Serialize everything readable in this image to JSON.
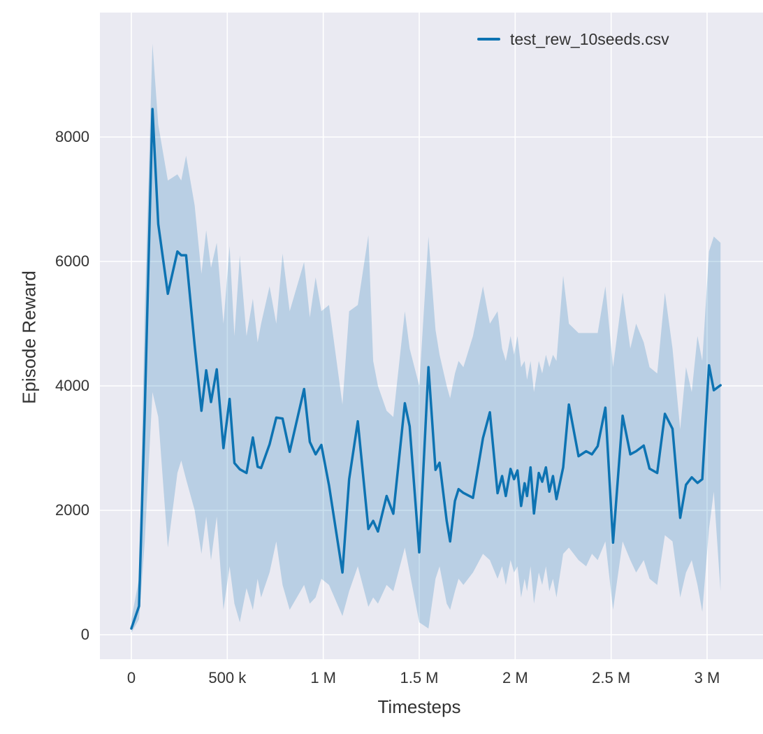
{
  "colors": {
    "line": "#0d73b2",
    "band_fill": "rgba(13,115,178,0.22)",
    "plot_background": "#eaeaf2",
    "grid": "#ffffff",
    "text": "#333333",
    "figure_background": "#ffffff"
  },
  "legend": {
    "entry": "test_rew_10seeds.csv"
  },
  "chart_data": {
    "type": "line",
    "title": "",
    "xlabel": "Timesteps",
    "ylabel": "Episode Reward",
    "grid": true,
    "legend_position": "upper right",
    "series": [
      {
        "name": "test_rew_10seeds.csv",
        "color": "#0d73b2",
        "band": "mean ± spread over 10 seeds"
      }
    ],
    "x_ticks": [
      {
        "value_millions": 0.0,
        "label": "0"
      },
      {
        "value_millions": 0.5,
        "label": "500 k"
      },
      {
        "value_millions": 1.0,
        "label": "1 M"
      },
      {
        "value_millions": 1.5,
        "label": "1.5 M"
      },
      {
        "value_millions": 2.0,
        "label": "2 M"
      },
      {
        "value_millions": 2.5,
        "label": "2.5 M"
      },
      {
        "value_millions": 3.0,
        "label": "3 M"
      }
    ],
    "y_ticks": [
      {
        "value": 0,
        "label": "0"
      },
      {
        "value": 2000,
        "label": "2000"
      },
      {
        "value": 4000,
        "label": "4000"
      },
      {
        "value": 6000,
        "label": "6000"
      },
      {
        "value": 8000,
        "label": "8000"
      }
    ],
    "xlim_millions": [
      -0.164,
      3.299
    ],
    "ylim": [
      -390,
      10000
    ],
    "points_format": [
      "timesteps_millions",
      "mean_reward",
      "band_low",
      "band_high"
    ],
    "points": [
      [
        0.0,
        100,
        30,
        250
      ],
      [
        0.04,
        460,
        250,
        900
      ],
      [
        0.07,
        3600,
        1500,
        5200
      ],
      [
        0.11,
        8450,
        3900,
        9500
      ],
      [
        0.14,
        6600,
        3500,
        8200
      ],
      [
        0.19,
        5480,
        1400,
        7300
      ],
      [
        0.24,
        6160,
        2600,
        7400
      ],
      [
        0.26,
        6100,
        2800,
        7300
      ],
      [
        0.285,
        6100,
        2500,
        7700
      ],
      [
        0.33,
        4650,
        2000,
        6900
      ],
      [
        0.365,
        3600,
        1300,
        5800
      ],
      [
        0.39,
        4250,
        1900,
        6500
      ],
      [
        0.415,
        3740,
        1200,
        5900
      ],
      [
        0.445,
        4265,
        1900,
        6300
      ],
      [
        0.48,
        3000,
        400,
        5000
      ],
      [
        0.512,
        3790,
        1100,
        6250
      ],
      [
        0.537,
        2760,
        500,
        4800
      ],
      [
        0.565,
        2660,
        200,
        6100
      ],
      [
        0.6,
        2600,
        750,
        4800
      ],
      [
        0.633,
        3170,
        400,
        5400
      ],
      [
        0.658,
        2700,
        900,
        4700
      ],
      [
        0.676,
        2680,
        600,
        5000
      ],
      [
        0.72,
        3060,
        1000,
        5600
      ],
      [
        0.755,
        3490,
        1500,
        5000
      ],
      [
        0.788,
        3475,
        800,
        6125
      ],
      [
        0.825,
        2940,
        400,
        5200
      ],
      [
        0.9,
        3950,
        800,
        5990
      ],
      [
        0.93,
        3100,
        500,
        5100
      ],
      [
        0.96,
        2900,
        600,
        5745
      ],
      [
        0.99,
        3050,
        900,
        5200
      ],
      [
        1.03,
        2400,
        800,
        5300
      ],
      [
        1.1,
        1000,
        300,
        3700
      ],
      [
        1.135,
        2500,
        700,
        5200
      ],
      [
        1.18,
        3430,
        1100,
        5300
      ],
      [
        1.235,
        1700,
        450,
        6420
      ],
      [
        1.26,
        1830,
        600,
        4400
      ],
      [
        1.285,
        1660,
        500,
        4000
      ],
      [
        1.33,
        2230,
        800,
        3600
      ],
      [
        1.365,
        1945,
        700,
        3500
      ],
      [
        1.425,
        3720,
        1400,
        5200
      ],
      [
        1.45,
        3350,
        1000,
        4600
      ],
      [
        1.5,
        1325,
        200,
        4000
      ],
      [
        1.548,
        4300,
        100,
        6400
      ],
      [
        1.585,
        2650,
        900,
        4900
      ],
      [
        1.606,
        2765,
        1100,
        4500
      ],
      [
        1.643,
        1830,
        500,
        4000
      ],
      [
        1.661,
        1500,
        400,
        3800
      ],
      [
        1.686,
        2150,
        700,
        4200
      ],
      [
        1.705,
        2340,
        900,
        4400
      ],
      [
        1.73,
        2280,
        800,
        4300
      ],
      [
        1.78,
        2200,
        1000,
        4800
      ],
      [
        1.832,
        3160,
        1300,
        5600
      ],
      [
        1.868,
        3575,
        1200,
        5000
      ],
      [
        1.908,
        2275,
        900,
        5200
      ],
      [
        1.932,
        2550,
        1100,
        4600
      ],
      [
        1.951,
        2230,
        800,
        4400
      ],
      [
        1.976,
        2665,
        1200,
        4800
      ],
      [
        1.994,
        2500,
        1000,
        4500
      ],
      [
        2.012,
        2640,
        1100,
        4800
      ],
      [
        2.031,
        2070,
        600,
        4300
      ],
      [
        2.049,
        2435,
        900,
        4400
      ],
      [
        2.062,
        2230,
        700,
        4100
      ],
      [
        2.08,
        2690,
        1100,
        4400
      ],
      [
        2.098,
        1950,
        500,
        3900
      ],
      [
        2.123,
        2600,
        1000,
        4400
      ],
      [
        2.141,
        2460,
        800,
        4200
      ],
      [
        2.16,
        2690,
        1100,
        4500
      ],
      [
        2.178,
        2300,
        700,
        4300
      ],
      [
        2.197,
        2550,
        900,
        4500
      ],
      [
        2.215,
        2180,
        600,
        4400
      ],
      [
        2.25,
        2690,
        1300,
        5770
      ],
      [
        2.28,
        3700,
        1400,
        5000
      ],
      [
        2.33,
        2870,
        1200,
        4850
      ],
      [
        2.37,
        2950,
        1100,
        4850
      ],
      [
        2.4,
        2900,
        1300,
        4850
      ],
      [
        2.43,
        3030,
        1200,
        4850
      ],
      [
        2.47,
        3650,
        1500,
        5600
      ],
      [
        2.51,
        1480,
        400,
        4300
      ],
      [
        2.56,
        3520,
        1500,
        5500
      ],
      [
        2.6,
        2900,
        1200,
        4600
      ],
      [
        2.63,
        2950,
        1000,
        5000
      ],
      [
        2.67,
        3040,
        1200,
        4700
      ],
      [
        2.7,
        2670,
        900,
        4300
      ],
      [
        2.74,
        2600,
        800,
        4200
      ],
      [
        2.78,
        3550,
        1600,
        5500
      ],
      [
        2.82,
        3310,
        1500,
        4600
      ],
      [
        2.86,
        1880,
        600,
        3300
      ],
      [
        2.89,
        2410,
        1000,
        4300
      ],
      [
        2.92,
        2530,
        1200,
        3900
      ],
      [
        2.95,
        2440,
        800,
        4800
      ],
      [
        2.975,
        2500,
        370,
        4400
      ],
      [
        3.01,
        4330,
        1700,
        6160
      ],
      [
        3.035,
        3930,
        2300,
        6400
      ],
      [
        3.07,
        4010,
        700,
        6300
      ]
    ]
  }
}
